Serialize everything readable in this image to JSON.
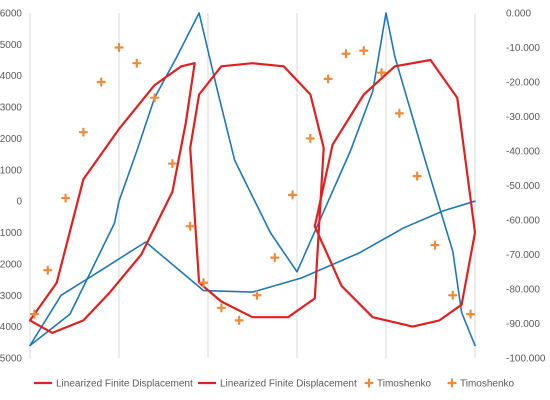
{
  "chart_data": {
    "type": "line",
    "title": "",
    "xlabel": "",
    "ylabel": "",
    "grid": "vertical",
    "legend_position": "bottom",
    "x_range": [
      0,
      10
    ],
    "ylim_left": [
      -5000,
      6000
    ],
    "ylim_right": [
      -100,
      0
    ],
    "left_ticks": [
      "-5000",
      "-4000",
      "-3000",
      "-2000",
      "-1000",
      "0",
      "1000",
      "2000",
      "3000",
      "4000",
      "5000",
      "6000"
    ],
    "right_ticks": [
      "-100.000",
      "-90.000",
      "-80.000",
      "-70.000",
      "-60.000",
      "-50.000",
      "-40.000",
      "-30.000",
      "-20.000",
      "-10.000",
      "0.000"
    ],
    "colors": {
      "blue": "#1f77b4",
      "red": "#e02020",
      "orange": "#ef8a3a"
    },
    "legend": [
      {
        "label": "Linearized Finite Displacement",
        "marker": "line",
        "color": "#e02020"
      },
      {
        "label": "Linearized Finite Displacement",
        "marker": "line",
        "color": "#e02020"
      },
      {
        "label": "Timoshenko",
        "marker": "cross",
        "color": "#ef8a3a"
      },
      {
        "label": "Timoshenko",
        "marker": "cross",
        "color": "#ef8a3a"
      }
    ],
    "series": [
      {
        "type": "line",
        "axis": "left",
        "color": "#1f77b4",
        "x": [
          0.0,
          0.9,
          1.9,
          2.0,
          2.4,
          2.8,
          3.3,
          3.8,
          4.2,
          4.6,
          5.4,
          6.0,
          7.2,
          7.7,
          8.0,
          8.2,
          8.9,
          9.5,
          9.7,
          10.0
        ],
        "y": [
          -4600,
          -3600,
          -700,
          0,
          1600,
          3300,
          4600,
          6000,
          3600,
          1300,
          -1000,
          -2250,
          1600,
          3500,
          6000,
          4600,
          1200,
          -1600,
          -3550,
          -4600
        ]
      },
      {
        "type": "line",
        "axis": "left",
        "color": "#1f77b4",
        "x": [
          0.0,
          0.7,
          1.6,
          2.6,
          3.9,
          5.0,
          6.1,
          7.4,
          8.4,
          9.3,
          10.0
        ],
        "y": [
          -4600,
          -3000,
          -2200,
          -1300,
          -2850,
          -2900,
          -2450,
          -1650,
          -850,
          -300,
          0
        ]
      },
      {
        "type": "line",
        "axis": "left",
        "color": "#e02020",
        "x": [
          0.0,
          0.6,
          1.2,
          2.0,
          2.8,
          3.4,
          3.7,
          3.5,
          3.2,
          2.5,
          1.8,
          1.2,
          0.5,
          0.0
        ],
        "y": [
          -3800,
          -2600,
          700,
          2300,
          3700,
          4300,
          4400,
          2500,
          300,
          -1700,
          -2900,
          -3800,
          -4200,
          -3800
        ]
      },
      {
        "type": "line",
        "axis": "left",
        "color": "#e02020",
        "x": [
          3.6,
          3.8,
          4.3,
          5.0,
          5.7,
          6.3,
          6.6,
          6.4,
          5.8,
          5.0,
          4.3,
          3.8,
          3.6
        ],
        "y": [
          1700,
          3400,
          4300,
          4400,
          4300,
          3400,
          1700,
          -3100,
          -3700,
          -3700,
          -3200,
          -2600,
          1700
        ]
      },
      {
        "type": "line",
        "axis": "left",
        "color": "#e02020",
        "x": [
          6.4,
          6.8,
          7.5,
          8.2,
          9.0,
          9.6,
          10.0,
          9.7,
          9.2,
          8.6,
          7.7,
          7.0,
          6.4
        ],
        "y": [
          -800,
          1800,
          3400,
          4300,
          4500,
          3300,
          -1000,
          -3300,
          -3800,
          -4000,
          -3700,
          -2700,
          -800
        ]
      },
      {
        "type": "scatter",
        "axis": "left",
        "color": "#ef8a3a",
        "x": [
          0.1,
          0.4,
          0.8,
          1.2,
          1.6,
          2.0,
          2.4,
          2.8,
          3.2,
          3.6,
          3.9,
          4.3,
          4.7,
          5.1,
          5.5,
          5.9,
          6.3,
          6.7,
          7.1,
          7.5,
          7.9,
          8.3,
          8.7,
          9.1,
          9.5,
          9.9
        ],
        "y": [
          -3600,
          -2200,
          100,
          2200,
          3800,
          4900,
          4400,
          3300,
          1200,
          -800,
          -2600,
          -3400,
          -3800,
          -3000,
          -1800,
          200,
          2000,
          3900,
          4700,
          4800,
          4100,
          2800,
          800,
          -1400,
          -3000,
          -3600
        ]
      }
    ]
  }
}
